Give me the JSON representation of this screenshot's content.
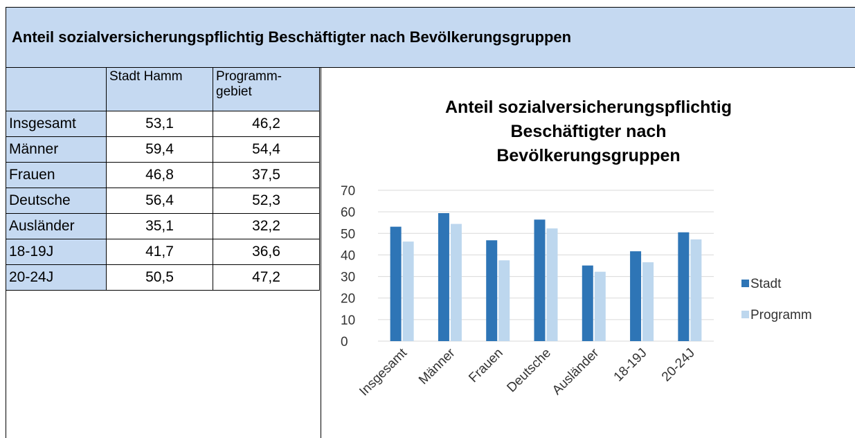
{
  "header": {
    "title": "Anteil sozialversicherungspflichtig Beschäftigter nach Bevölkerungsgruppen"
  },
  "table": {
    "columns": [
      "Stadt Hamm",
      "Programm-gebiet"
    ],
    "rows": [
      [
        "Insgesamt",
        "53,1",
        "46,2"
      ],
      [
        "Männer",
        "59,4",
        "54,4"
      ],
      [
        "Frauen",
        "46,8",
        "37,5"
      ],
      [
        "Deutsche",
        "56,4",
        "52,3"
      ],
      [
        "Ausländer",
        "35,1",
        "32,2"
      ],
      [
        "18-19J",
        "41,7",
        "36,6"
      ],
      [
        "20-24J",
        "50,5",
        "47,2"
      ]
    ]
  },
  "chart_data": {
    "type": "bar",
    "title": "Anteil sozialversicherungspflichtig Beschäftigter nach Bevölkerungsgruppen",
    "categories": [
      "Insgesamt",
      "Männer",
      "Frauen",
      "Deutsche",
      "Ausländer",
      "18-19J",
      "20-24J"
    ],
    "series": [
      {
        "name": "Stadt",
        "color": "#2e75b6",
        "values": [
          53.1,
          59.4,
          46.8,
          56.4,
          35.1,
          41.7,
          50.5
        ]
      },
      {
        "name": "Programm",
        "color": "#bdd7ee",
        "values": [
          46.2,
          54.4,
          37.5,
          52.3,
          32.2,
          36.6,
          47.2
        ]
      }
    ],
    "ylim": [
      0,
      70
    ],
    "yticks": [
      0,
      10,
      20,
      30,
      40,
      50,
      60,
      70
    ],
    "grid": true,
    "legend": "right"
  }
}
